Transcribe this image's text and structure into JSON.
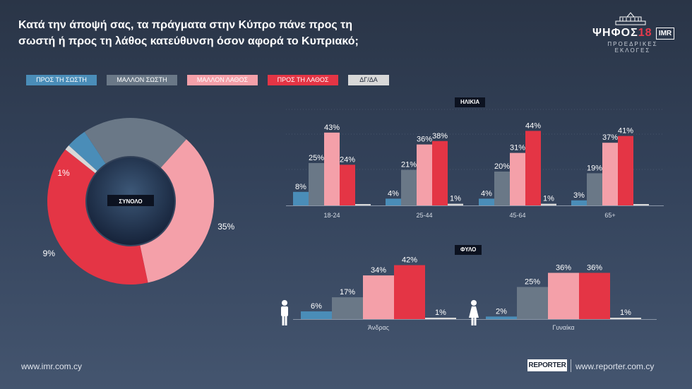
{
  "title": {
    "line1": "Κατά την άποψή σας, τα πράγματα στην Κύπρο πάνε προς τη",
    "line2": "σωστή ή προς τη λάθος κατεύθυνση όσον αφορά το Κυπριακό;"
  },
  "logo": {
    "main": "ΨΗΦΟΣ",
    "num": "18",
    "imr": "IMR",
    "sub": "ΠΡΟΕΔΡΙΚΕΣ ΕΚΛΟΓΕΣ"
  },
  "colors": {
    "right": "#4a8db8",
    "more_right": "#6a7887",
    "more_wrong": "#f4a0a9",
    "wrong": "#e43545",
    "dk": "#d8d8d8"
  },
  "chart_data": [
    {
      "type": "pie",
      "center_label": "ΣΥΝΟΛΟ",
      "categories": [
        "ΠΡΟΣ ΤΗ ΣΩΣΤΗ",
        "ΜΑΛΛΟΝ ΣΩΣΤΗ",
        "ΜΑΛΛΟΝ ΛΑΘΟΣ",
        "ΠΡΟΣ ΤΗ ΛΑΘΟΣ",
        "ΔΓ/ΔΑ"
      ],
      "values": [
        4,
        21,
        35,
        39,
        1
      ],
      "labels": [
        "4%",
        "21%",
        "35%",
        "39%",
        "1%"
      ]
    },
    {
      "type": "bar",
      "panel_label": "ΗΛΙΚΙΑ",
      "categories": [
        "18-24",
        "25-44",
        "45-64",
        "65+"
      ],
      "series": [
        {
          "name": "ΠΡΟΣ ΤΗ ΣΩΣΤΗ",
          "values": [
            8,
            4,
            4,
            3
          ],
          "labels": [
            "8%",
            "4%",
            "4%",
            "3%"
          ]
        },
        {
          "name": "ΜΑΛΛΟΝ ΣΩΣΤΗ",
          "values": [
            25,
            21,
            20,
            19
          ],
          "labels": [
            "25%",
            "21%",
            "20%",
            "19%"
          ]
        },
        {
          "name": "ΜΑΛΛΟΝ ΛΑΘΟΣ",
          "values": [
            43,
            36,
            31,
            37
          ],
          "labels": [
            "43%",
            "36%",
            "31%",
            "37%"
          ]
        },
        {
          "name": "ΠΡΟΣ ΤΗ ΛΑΘΟΣ",
          "values": [
            24,
            38,
            44,
            41
          ],
          "labels": [
            "24%",
            "38%",
            "44%",
            "41%"
          ]
        },
        {
          "name": "ΔΓ/ΔΑ",
          "values": [
            0,
            1,
            1,
            0
          ],
          "labels": [
            "",
            "1%",
            "1%",
            ""
          ]
        }
      ]
    },
    {
      "type": "bar",
      "panel_label": "ΦΥΛΟ",
      "categories": [
        "Άνδρας",
        "Γυναίκα"
      ],
      "icons": [
        "man-icon",
        "woman-icon"
      ],
      "series": [
        {
          "name": "ΠΡΟΣ ΤΗ ΣΩΣΤΗ",
          "values": [
            6,
            2
          ],
          "labels": [
            "6%",
            "2%"
          ]
        },
        {
          "name": "ΜΑΛΛΟΝ ΣΩΣΤΗ",
          "values": [
            17,
            25
          ],
          "labels": [
            "17%",
            "25%"
          ]
        },
        {
          "name": "ΜΑΛΛΟΝ ΛΑΘΟΣ",
          "values": [
            34,
            36
          ],
          "labels": [
            "34%",
            "36%"
          ]
        },
        {
          "name": "ΠΡΟΣ ΤΗ ΛΑΘΟΣ",
          "values": [
            42,
            36
          ],
          "labels": [
            "42%",
            "36%"
          ]
        },
        {
          "name": "ΔΓ/ΔΑ",
          "values": [
            1,
            1
          ],
          "labels": [
            "1%",
            "1%"
          ]
        }
      ]
    }
  ],
  "footer": {
    "left": "www.imr.com.cy",
    "reporter": "REPORTER",
    "right": "www.reporter.com.cy"
  }
}
